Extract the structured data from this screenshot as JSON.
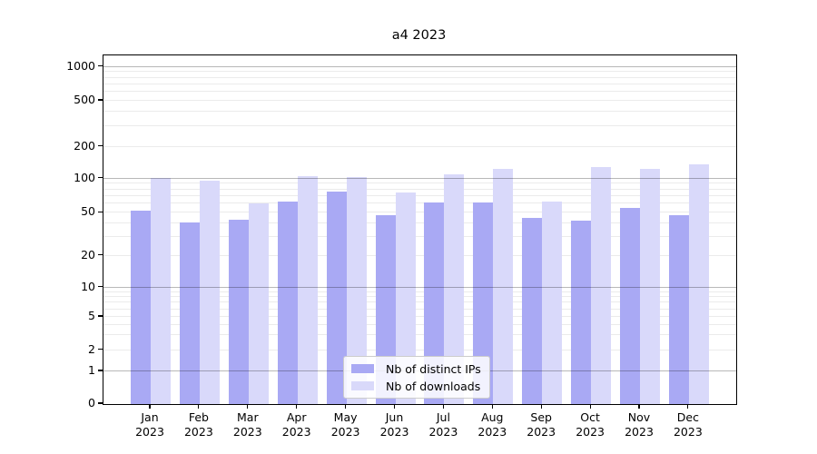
{
  "chart_data": {
    "type": "bar",
    "title": "a4 2023",
    "x_months": [
      "Jan",
      "Feb",
      "Mar",
      "Apr",
      "May",
      "Jun",
      "Jul",
      "Aug",
      "Sep",
      "Oct",
      "Nov",
      "Dec"
    ],
    "x_year": "2023",
    "series": [
      {
        "name": "Nb of distinct IPs",
        "color": "#a9a9f4",
        "values": [
          52,
          41,
          43,
          63,
          76,
          47,
          61,
          61,
          45,
          42,
          55,
          47
        ]
      },
      {
        "name": "Nb of downloads",
        "color": "#d9d9fa",
        "values": [
          101,
          95,
          60,
          106,
          104,
          75,
          109,
          124,
          63,
          129,
          123,
          137
        ]
      }
    ],
    "yticks": [
      0,
      1,
      2,
      5,
      10,
      20,
      50,
      100,
      200,
      500,
      1000
    ],
    "ylim": [
      0,
      1270
    ],
    "yscale": "symlog",
    "xlabel": "",
    "ylabel": "",
    "grid": "horizontal",
    "legend_position": "lower center"
  }
}
